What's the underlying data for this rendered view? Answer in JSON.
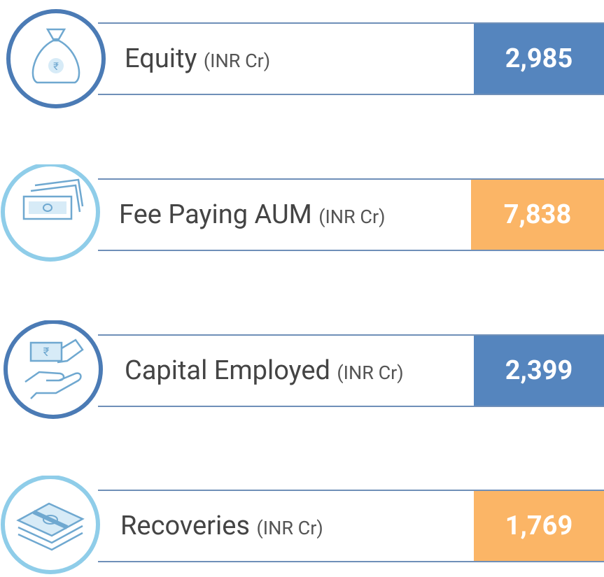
{
  "items": [
    {
      "label": "Equity",
      "unit": "(INR Cr)",
      "value": "2,985",
      "color": "#5585be",
      "ring": "#4b7bb5"
    },
    {
      "label": "Fee Paying AUM",
      "unit": "(INR Cr)",
      "value": "7,838",
      "color": "#fbb566",
      "ring": "#8fcde9"
    },
    {
      "label": "Capital Employed",
      "unit": "(INR Cr)",
      "value": "2,399",
      "color": "#5585be",
      "ring": "#4b7bb5"
    },
    {
      "label": "Recoveries",
      "unit": "(INR Cr)",
      "value": "1,769",
      "color": "#fbb566",
      "ring": "#8fcde9"
    }
  ]
}
